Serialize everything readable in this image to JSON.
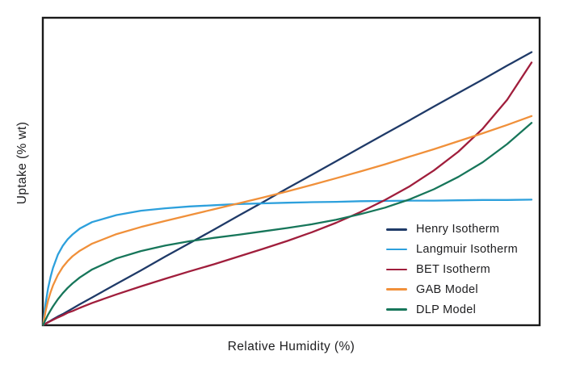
{
  "colors": {
    "background": "#ffffff",
    "plot_border": "#1a1a1a",
    "text": "#1d1d1f"
  },
  "chart_data": {
    "type": "line",
    "title": "",
    "xlabel": "Relative Humidity (%)",
    "ylabel": "Uptake (% wt)",
    "xlim": [
      0,
      100
    ],
    "ylim": [
      0,
      1
    ],
    "grid": false,
    "tick_labels_visible": false,
    "legend_position": "inside-bottom-right",
    "x": [
      0,
      0.25,
      0.5,
      1,
      1.5,
      2,
      3,
      4,
      5,
      6,
      7.5,
      10,
      15,
      20,
      25,
      30,
      35,
      40,
      45,
      50,
      55,
      60,
      65,
      70,
      75,
      80,
      85,
      90,
      95,
      100
    ],
    "series": [
      {
        "name": "Henry Isotherm",
        "color": "#1f3a68",
        "values": [
          0,
          0.002,
          0.004,
          0.009,
          0.013,
          0.018,
          0.027,
          0.035,
          0.044,
          0.053,
          0.067,
          0.089,
          0.133,
          0.177,
          0.222,
          0.266,
          0.31,
          0.355,
          0.399,
          0.444,
          0.488,
          0.532,
          0.577,
          0.621,
          0.665,
          0.71,
          0.754,
          0.798,
          0.843,
          0.887
        ]
      },
      {
        "name": "Langmuir Isotherm",
        "color": "#2da0dc",
        "values": [
          0,
          0.038,
          0.07,
          0.119,
          0.156,
          0.185,
          0.228,
          0.257,
          0.278,
          0.294,
          0.313,
          0.334,
          0.357,
          0.371,
          0.379,
          0.385,
          0.389,
          0.393,
          0.395,
          0.397,
          0.399,
          0.4,
          0.402,
          0.403,
          0.404,
          0.404,
          0.405,
          0.406,
          0.406,
          0.407
        ]
      },
      {
        "name": "BET Isotherm",
        "color": "#a01e3c",
        "values": [
          0,
          0.002,
          0.004,
          0.008,
          0.012,
          0.016,
          0.024,
          0.031,
          0.039,
          0.045,
          0.055,
          0.071,
          0.099,
          0.125,
          0.15,
          0.174,
          0.197,
          0.222,
          0.247,
          0.273,
          0.301,
          0.332,
          0.367,
          0.406,
          0.45,
          0.502,
          0.563,
          0.638,
          0.732,
          0.853
        ]
      },
      {
        "name": "GAB Model",
        "color": "#f0903a",
        "values": [
          0,
          0.024,
          0.045,
          0.079,
          0.106,
          0.128,
          0.162,
          0.188,
          0.207,
          0.223,
          0.241,
          0.264,
          0.295,
          0.318,
          0.338,
          0.357,
          0.376,
          0.395,
          0.414,
          0.434,
          0.455,
          0.477,
          0.499,
          0.522,
          0.547,
          0.571,
          0.597,
          0.623,
          0.65,
          0.679
        ]
      },
      {
        "name": "DLP Model",
        "color": "#17765a",
        "values": [
          0,
          0.009,
          0.017,
          0.033,
          0.047,
          0.06,
          0.083,
          0.103,
          0.12,
          0.135,
          0.154,
          0.18,
          0.216,
          0.24,
          0.258,
          0.272,
          0.283,
          0.293,
          0.304,
          0.315,
          0.327,
          0.342,
          0.36,
          0.381,
          0.408,
          0.441,
          0.481,
          0.529,
          0.588,
          0.657
        ]
      }
    ]
  }
}
